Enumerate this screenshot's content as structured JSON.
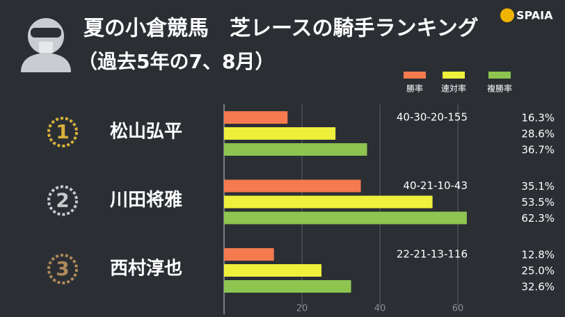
{
  "brand": "SPAIA",
  "chart_data": {
    "type": "bar",
    "orientation": "horizontal",
    "title": "夏の小倉競馬　芝レースの騎手ランキング",
    "subtitle": "（過去5年の7、8月）",
    "categories": [
      "松山弘平",
      "川田将雅",
      "西村淳也"
    ],
    "ranks": [
      "1",
      "2",
      "3"
    ],
    "records": [
      "40-30-20-155",
      "40-21-10-43",
      "22-21-13-116"
    ],
    "series": [
      {
        "name": "勝率",
        "color": "#f57a4f",
        "values": [
          16.3,
          35.1,
          12.8
        ],
        "value_labels": [
          "16.3%",
          "35.1%",
          "12.8%"
        ]
      },
      {
        "name": "連対率",
        "color": "#eef03c",
        "values": [
          28.6,
          53.5,
          25.0
        ],
        "value_labels": [
          "28.6%",
          "53.5%",
          "25.0%"
        ]
      },
      {
        "name": "複勝率",
        "color": "#8dc550",
        "values": [
          36.7,
          62.3,
          32.6
        ],
        "value_labels": [
          "36.7%",
          "62.3%",
          "32.6%"
        ]
      }
    ],
    "xlim": [
      0,
      70
    ],
    "xticks": [
      20,
      40,
      60
    ],
    "grid": true
  }
}
